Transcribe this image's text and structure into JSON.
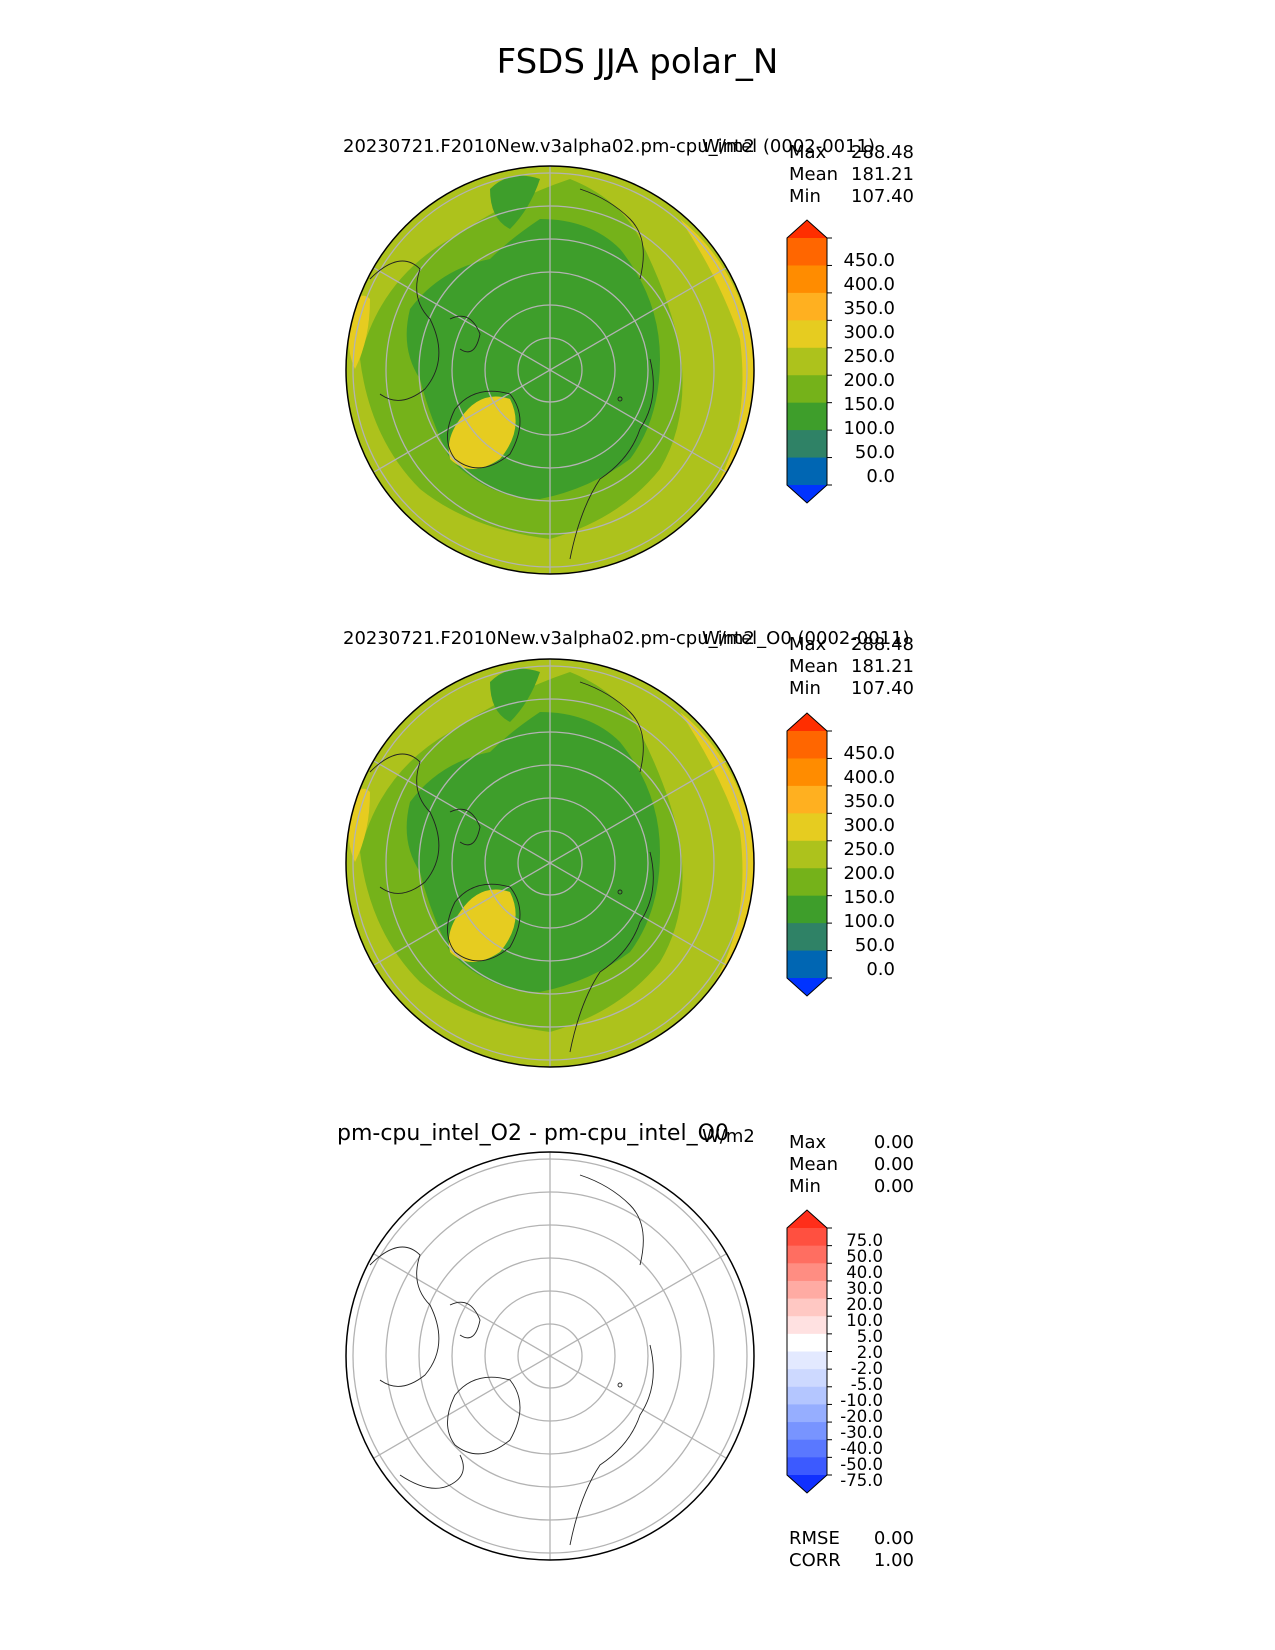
{
  "title": "FSDS JJA polar_N",
  "colors": {
    "fsds_levels": [
      "#0033ff",
      "#0066b3",
      "#2f8266",
      "#3e9e2b",
      "#75b21a",
      "#adc21c",
      "#e6cc20",
      "#ffb020",
      "#ff8c00",
      "#ff6600",
      "#ff2e00"
    ],
    "diff_levels": [
      "#1030ff",
      "#3c5aff",
      "#5a78ff",
      "#7894ff",
      "#96aeff",
      "#b4c6ff",
      "#cdd9ff",
      "#e3e9ff",
      "#ffffff",
      "#ffe1e1",
      "#ffc8c3",
      "#ffaba3",
      "#ff8d82",
      "#ff6e61",
      "#ff5040",
      "#ff2e1a"
    ],
    "grid": "#b3b3b3"
  },
  "panels": [
    {
      "title": "20230721.F2010New.v3alpha02.pm-cpu_intel (0002-0011)",
      "units": "W/m2",
      "stats": [
        [
          "Max",
          "288.48"
        ],
        [
          "Mean",
          "181.21"
        ],
        [
          "Min",
          "107.40"
        ]
      ],
      "colorbar_ticks": [
        "450.0",
        "400.0",
        "350.0",
        "300.0",
        "250.0",
        "200.0",
        "150.0",
        "100.0",
        "50.0",
        "0.0"
      ]
    },
    {
      "title": "20230721.F2010New.v3alpha02.pm-cpu_intel_O0 (0002-0011)",
      "units": "W/m2",
      "stats": [
        [
          "Max",
          "288.48"
        ],
        [
          "Mean",
          "181.21"
        ],
        [
          "Min",
          "107.40"
        ]
      ],
      "colorbar_ticks": [
        "450.0",
        "400.0",
        "350.0",
        "300.0",
        "250.0",
        "200.0",
        "150.0",
        "100.0",
        "50.0",
        "0.0"
      ]
    },
    {
      "title": "pm-cpu_intel_O2 - pm-cpu_intel_O0",
      "units": "W/m2",
      "stats": [
        [
          "Max",
          "0.00"
        ],
        [
          "Mean",
          "0.00"
        ],
        [
          "Min",
          "0.00"
        ]
      ],
      "colorbar_ticks": [
        "75.0",
        "50.0",
        "40.0",
        "30.0",
        "20.0",
        "10.0",
        "5.0",
        "2.0",
        "-2.0",
        "-5.0",
        "-10.0",
        "-20.0",
        "-30.0",
        "-40.0",
        "-50.0",
        "-75.0"
      ],
      "metrics": [
        [
          "RMSE",
          "0.00"
        ],
        [
          "CORR",
          "1.00"
        ]
      ]
    }
  ],
  "chart_data": [
    {
      "type": "heatmap",
      "title": "20230721.F2010New.v3alpha02.pm-cpu_intel (0002-0011)",
      "projection": "north polar stereographic",
      "units": "W/m2",
      "levels": [
        0,
        50,
        100,
        150,
        200,
        250,
        300,
        350,
        400,
        450
      ],
      "extend": "both",
      "stats": {
        "max": 288.48,
        "mean": 181.21,
        "min": 107.4
      }
    },
    {
      "type": "heatmap",
      "title": "20230721.F2010New.v3alpha02.pm-cpu_intel_O0 (0002-0011)",
      "projection": "north polar stereographic",
      "units": "W/m2",
      "levels": [
        0,
        50,
        100,
        150,
        200,
        250,
        300,
        350,
        400,
        450
      ],
      "extend": "both",
      "stats": {
        "max": 288.48,
        "mean": 181.21,
        "min": 107.4
      }
    },
    {
      "type": "heatmap",
      "title": "pm-cpu_intel_O2 - pm-cpu_intel_O0",
      "projection": "north polar stereographic",
      "units": "W/m2",
      "levels": [
        -75,
        -50,
        -40,
        -30,
        -20,
        -10,
        -5,
        -2,
        2,
        5,
        10,
        20,
        30,
        40,
        50,
        75
      ],
      "extend": "both",
      "stats": {
        "max": 0.0,
        "mean": 0.0,
        "min": 0.0
      },
      "rmse": 0.0,
      "corr": 1.0
    }
  ]
}
